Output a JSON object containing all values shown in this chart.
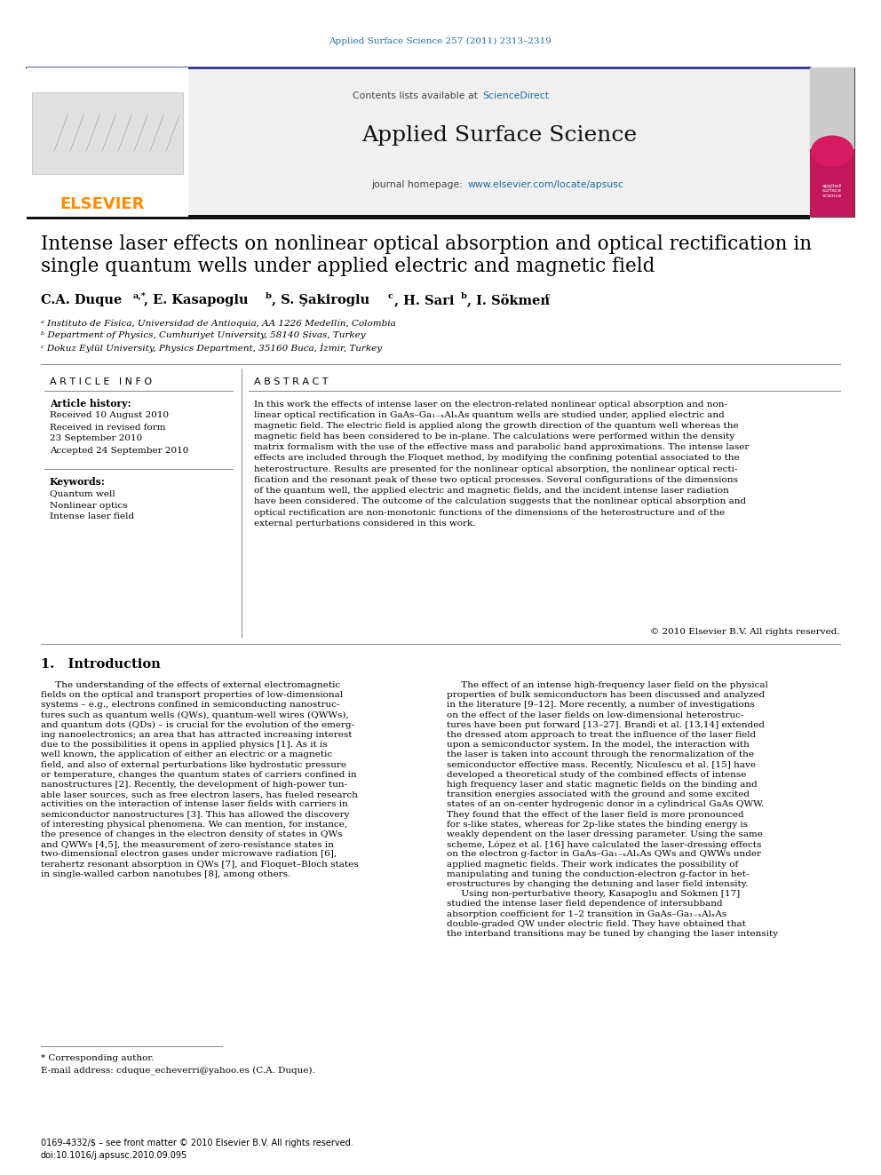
{
  "journal_ref": "Applied Surface Science 257 (2011) 2313–2319",
  "homepage_url": "www.elsevier.com/locate/apsusc",
  "elsevier_color": "#FF8C00",
  "link_color": "#1a6daa",
  "dark_bar_color": "#1a237e",
  "title_line1": "Intense laser effects on nonlinear optical absorption and optical rectification in",
  "title_line2": "single quantum wells under applied electric and magnetic field",
  "author1": "C.A. Duque",
  "author1_sup": "a,*",
  "author2": ", E. Kasapoglu",
  "author2_sup": "b",
  "author3": ", S. Şakiroglu",
  "author3_sup": "c",
  "author4": ", H. Sari",
  "author4_sup": "b",
  "author5": ", I. Sökmen",
  "author5_sup": "c",
  "affil_a": "ᵃ Instituto de Física, Universidad de Antioquia, AA 1226 Medellín, Colombia",
  "affil_b": "ᵇ Department of Physics, Cumhuriyet University, 58140 Sivas, Turkey",
  "affil_c": "ᶜ Dokuz Eylül University, Physics Department, 35160 Buca, İzmir, Turkey",
  "article_info_title": "A R T I C L E   I N F O",
  "abstract_title": "A B S T R A C T",
  "article_history_title": "Article history:",
  "received1": "Received 10 August 2010",
  "received2": "Received in revised form",
  "date2": "23 September 2010",
  "accepted": "Accepted 24 September 2010",
  "keywords_title": "Keywords:",
  "keyword1": "Quantum well",
  "keyword2": "Nonlinear optics",
  "keyword3": "Intense laser field",
  "abstract_lines": [
    "In this work the effects of intense laser on the electron-related nonlinear optical absorption and non-",
    "linear optical rectification in GaAs–Ga₁₋ₓAlₓAs quantum wells are studied under, applied electric and",
    "magnetic field. The electric field is applied along the growth direction of the quantum well whereas the",
    "magnetic field has been considered to be in-plane. The calculations were performed within the density",
    "matrix formalism with the use of the effective mass and parabolic band approximations. The intense laser",
    "effects are included through the Floquet method, by modifying the confining potential associated to the",
    "heterostructure. Results are presented for the nonlinear optical absorption, the nonlinear optical recti-",
    "fication and the resonant peak of these two optical processes. Several configurations of the dimensions",
    "of the quantum well, the applied electric and magnetic fields, and the incident intense laser radiation",
    "have been considered. The outcome of the calculation suggests that the nonlinear optical absorption and",
    "optical rectification are non-monotonic functions of the dimensions of the heterostructure and of the",
    "external perturbations considered in this work."
  ],
  "copyright": "© 2010 Elsevier B.V. All rights reserved.",
  "section1_title": "1.   Introduction",
  "col1_lines": [
    "     The understanding of the effects of external electromagnetic",
    "fields on the optical and transport properties of low-dimensional",
    "systems – e.g., electrons confined in semiconducting nanostruc-",
    "tures such as quantum wells (QWs), quantum-well wires (QWWs),",
    "and quantum dots (QDs) – is crucial for the evolution of the emerg-",
    "ing nanoelectronics; an area that has attracted increasing interest",
    "due to the possibilities it opens in applied physics [1]. As it is",
    "well known, the application of either an electric or a magnetic",
    "field, and also of external perturbations like hydrostatic pressure",
    "or temperature, changes the quantum states of carriers confined in",
    "nanostructures [2]. Recently, the development of high-power tun-",
    "able laser sources, such as free electron lasers, has fueled research",
    "activities on the interaction of intense laser fields with carriers in",
    "semiconductor nanostructures [3]. This has allowed the discovery",
    "of interesting physical phenomena. We can mention, for instance,",
    "the presence of changes in the electron density of states in QWs",
    "and QWWs [4,5], the measurement of zero-resistance states in",
    "two-dimensional electron gases under microwave radiation [6],",
    "terahertz resonant absorption in QWs [7], and Floquet–Bloch states",
    "in single-walled carbon nanotubes [8], among others."
  ],
  "col2_lines": [
    "     The effect of an intense high-frequency laser field on the physical",
    "properties of bulk semiconductors has been discussed and analyzed",
    "in the literature [9–12]. More recently, a number of investigations",
    "on the effect of the laser fields on low-dimensional heterostruc-",
    "tures have been put forward [13–27]. Brandi et al. [13,14] extended",
    "the dressed atom approach to treat the influence of the laser field",
    "upon a semiconductor system. In the model, the interaction with",
    "the laser is taken into account through the renormalization of the",
    "semiconductor effective mass. Recently, Niculescu et al. [15] have",
    "developed a theoretical study of the combined effects of intense",
    "high frequency laser and static magnetic fields on the binding and",
    "transition energies associated with the ground and some excited",
    "states of an on-center hydrogenic donor in a cylindrical GaAs QWW.",
    "They found that the effect of the laser field is more pronounced",
    "for s-like states, whereas for 2p-like states the binding energy is",
    "weakly dependent on the laser dressing parameter. Using the same",
    "scheme, López et al. [16] have calculated the laser-dressing effects",
    "on the electron g-factor in GaAs–Ga₁₋ₓAlₓAs QWs and QWWs under",
    "applied magnetic fields. Their work indicates the possibility of",
    "manipulating and tuning the conduction-electron g-factor in het-",
    "erostructures by changing the detuning and laser field intensity.",
    "     Using non-perturbative theory, Kasapoglu and Sokmen [17]",
    "studied the intense laser field dependence of intersubband",
    "absorption coefficient for 1–2 transition in GaAs–Ga₁₋ₓAlₓAs",
    "double-graded QW under electric field. They have obtained that",
    "the interband transitions may be tuned by changing the laser intensity"
  ],
  "footnote_star": "* Corresponding author.",
  "footnote_email": "E-mail address: cduque_echeverri@yahoo.es (C.A. Duque).",
  "footer_issn": "0169-4332/$ – see front matter © 2010 Elsevier B.V. All rights reserved.",
  "footer_doi": "doi:10.1016/j.apsusc.2010.09.095"
}
